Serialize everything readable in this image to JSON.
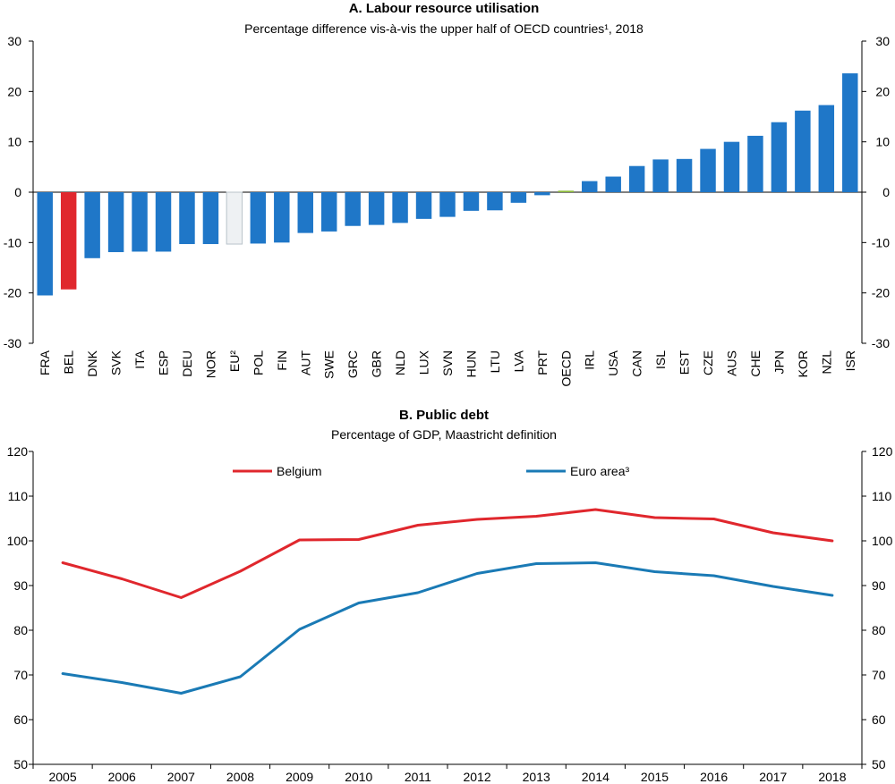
{
  "chart_data": [
    {
      "type": "bar",
      "title": "A. Labour resource utilisation",
      "subtitle": "Percentage difference vis-à-vis the upper half of OECD countries¹, 2018",
      "ylim": [
        -30,
        30
      ],
      "yticks": [
        -30,
        -20,
        -10,
        0,
        10,
        20,
        30
      ],
      "grid": false,
      "categories": [
        "FRA",
        "BEL",
        "DNK",
        "SVK",
        "ITA",
        "ESP",
        "DEU",
        "NOR",
        "EU²",
        "POL",
        "FIN",
        "AUT",
        "SWE",
        "GRC",
        "GBR",
        "NLD",
        "LUX",
        "SVN",
        "HUN",
        "LTU",
        "LVA",
        "PRT",
        "OECD",
        "IRL",
        "USA",
        "CAN",
        "ISL",
        "EST",
        "CZE",
        "AUS",
        "CHE",
        "JPN",
        "KOR",
        "NZL",
        "ISR"
      ],
      "values": [
        -20.5,
        -19.3,
        -13.1,
        -11.9,
        -11.8,
        -11.8,
        -10.3,
        -10.3,
        -10.3,
        -10.2,
        -10.0,
        -8.1,
        -7.8,
        -6.7,
        -6.5,
        -6.1,
        -5.3,
        -4.9,
        -3.7,
        -3.6,
        -2.1,
        -0.6,
        0.3,
        2.2,
        3.1,
        5.2,
        6.5,
        6.6,
        8.6,
        10.0,
        11.2,
        13.9,
        16.2,
        17.3,
        23.6
      ],
      "colors": {
        "default": "#1f77c8",
        "highlight": "#e0272d",
        "eu": "#eef1f3",
        "oecd": "#8dbb3a"
      }
    },
    {
      "type": "line",
      "title": "B. Public debt",
      "subtitle": "Percentage of GDP, Maastricht definition",
      "ylim": [
        50,
        120
      ],
      "yticks": [
        50,
        60,
        70,
        80,
        90,
        100,
        110,
        120
      ],
      "grid": false,
      "legend_position": "top",
      "x": [
        "2005",
        "2006",
        "2007",
        "2008",
        "2009",
        "2010",
        "2011",
        "2012",
        "2013",
        "2014",
        "2015",
        "2016",
        "2017",
        "2018"
      ],
      "series": [
        {
          "name": "Belgium",
          "color": "#e0272d",
          "values": [
            95.1,
            91.5,
            87.3,
            93.2,
            100.2,
            100.3,
            103.5,
            104.8,
            105.5,
            107.0,
            105.2,
            104.9,
            101.8,
            100.0
          ]
        },
        {
          "name": "Euro area³",
          "color": "#1a7ab5",
          "values": [
            70.3,
            68.3,
            65.9,
            69.6,
            80.2,
            86.1,
            88.4,
            92.7,
            94.9,
            95.1,
            93.1,
            92.2,
            89.8,
            87.8
          ]
        }
      ]
    }
  ]
}
